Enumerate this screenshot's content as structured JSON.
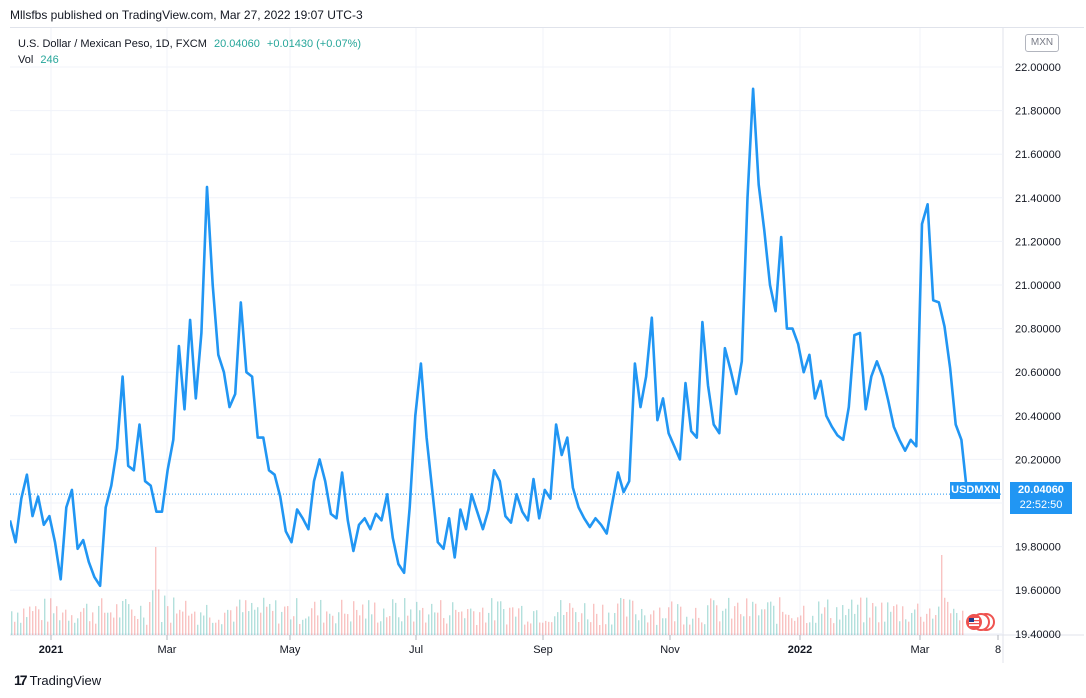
{
  "publisher_line": "Mllsfbs published on TradingView.com, Mar 27, 2022 19:07 UTC-3",
  "legend": {
    "symbol": "U.S. Dollar / Mexican Peso, 1D, FXCM",
    "price": "20.04060",
    "change": "+0.01430 (+0.07%)",
    "vol_label": "Vol",
    "vol_value": "246"
  },
  "currency_badge": "MXN",
  "symbol_tag": "USDMXN",
  "price_tag": {
    "price": "20.04060",
    "countdown": "22:52:50"
  },
  "footer": {
    "brand": "TradingView"
  },
  "colors": {
    "line": "#2196f3",
    "vol_up": "#26a69a",
    "vol_down": "#ef5350",
    "grid": "#f0f3fa"
  },
  "chart_data": {
    "type": "line",
    "y_ticks": [
      "22.00000",
      "21.80000",
      "21.60000",
      "21.40000",
      "21.20000",
      "21.00000",
      "20.80000",
      "20.60000",
      "20.40000",
      "20.20000",
      "19.80000",
      "19.60000",
      "19.40000"
    ],
    "ylim": [
      19.4,
      22.0
    ],
    "x_ticks": [
      "2021",
      "Mar",
      "May",
      "Jul",
      "Sep",
      "Nov",
      "2022",
      "Mar",
      "8"
    ],
    "series": [
      {
        "values": [
          19.92,
          19.82,
          20.02,
          20.13,
          19.94,
          20.03,
          19.9,
          19.94,
          19.82,
          19.65,
          19.98,
          20.06,
          19.79,
          19.83,
          19.73,
          19.66,
          19.62,
          19.98,
          20.08,
          20.25,
          20.58,
          20.17,
          20.15,
          20.36,
          20.1,
          20.08,
          19.96,
          19.96,
          20.15,
          20.29,
          20.72,
          20.43,
          20.84,
          20.48,
          20.78,
          21.45,
          21.0,
          20.68,
          20.6,
          20.44,
          20.5,
          20.92,
          20.6,
          20.58,
          20.3,
          20.3,
          20.15,
          20.13,
          20.03,
          19.87,
          19.82,
          19.97,
          19.93,
          19.88,
          20.1,
          20.2,
          20.1,
          19.95,
          19.93,
          20.14,
          19.92,
          19.78,
          19.9,
          19.93,
          19.88,
          19.95,
          19.92,
          20.04,
          19.84,
          19.72,
          19.68,
          19.98,
          20.4,
          20.64,
          20.3,
          20.06,
          19.82,
          19.79,
          19.93,
          19.75,
          19.97,
          19.88,
          20.04,
          19.96,
          19.88,
          19.97,
          20.15,
          20.1,
          19.94,
          19.91,
          20.04,
          19.96,
          19.92,
          20.11,
          19.93,
          20.06,
          20.02,
          20.36,
          20.22,
          20.3,
          20.07,
          19.98,
          19.93,
          19.89,
          19.93,
          19.9,
          19.86,
          20.0,
          20.14,
          20.05,
          20.1,
          20.64,
          20.44,
          20.58,
          20.85,
          20.38,
          20.48,
          20.32,
          20.26,
          20.2,
          20.55,
          20.33,
          20.3,
          20.83,
          20.54,
          20.36,
          20.32,
          20.71,
          20.61,
          20.5,
          20.65,
          21.4,
          21.9,
          21.46,
          21.25,
          21.0,
          20.88,
          21.22,
          20.8,
          20.8,
          20.73,
          20.6,
          20.68,
          20.48,
          20.56,
          20.4,
          20.35,
          20.31,
          20.29,
          20.44,
          20.77,
          20.78,
          20.43,
          20.58,
          20.65,
          20.58,
          20.47,
          20.35,
          20.29,
          20.24,
          20.29,
          20.26,
          21.28,
          21.37,
          20.93,
          20.92,
          20.81,
          20.62,
          20.36,
          20.29,
          20.05
        ]
      }
    ],
    "last_value": 20.0406
  }
}
